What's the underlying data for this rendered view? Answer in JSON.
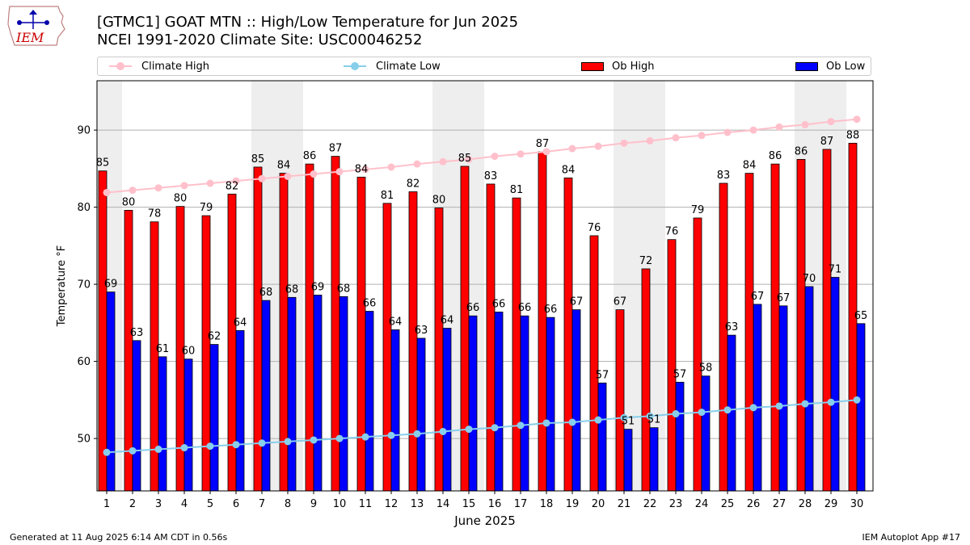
{
  "header": {
    "logo_text": "IEM",
    "title_line1": "[GTMC1] GOAT MTN :: High/Low Temperature for Jun 2025",
    "title_line2": "NCEI 1991-2020 Climate Site: USC00046252"
  },
  "footer": {
    "generated": "Generated at 11 Aug 2025 6:14 AM CDT in 0.56s",
    "app": "IEM Autoplot App #17"
  },
  "legend": {
    "climate_high": "Climate High",
    "climate_low": "Climate Low",
    "ob_high": "Ob High",
    "ob_low": "Ob Low"
  },
  "colors": {
    "climate_high": "#ffc0cb",
    "climate_low": "#87ceeb",
    "ob_high": "#ff0000",
    "ob_low": "#0000ff",
    "weekend_shade": "#eeeeee"
  },
  "chart_data": {
    "type": "bar",
    "xlabel": "June 2025",
    "ylabel": "Temperature °F",
    "ylim": [
      43.2,
      96.4
    ],
    "yticks": [
      50,
      60,
      70,
      80,
      90
    ],
    "grid": true,
    "legend_position": "top",
    "categories": [
      1,
      2,
      3,
      4,
      5,
      6,
      7,
      8,
      9,
      10,
      11,
      12,
      13,
      14,
      15,
      16,
      17,
      18,
      19,
      20,
      21,
      22,
      23,
      24,
      25,
      26,
      27,
      28,
      29,
      30
    ],
    "shaded_days": [
      1,
      7,
      8,
      14,
      15,
      21,
      22,
      28,
      29
    ],
    "series": [
      {
        "name": "Ob High",
        "kind": "bar",
        "values": [
          84.7,
          79.6,
          78.1,
          80.1,
          78.9,
          81.7,
          85.2,
          84.4,
          85.6,
          86.6,
          83.9,
          80.5,
          82.0,
          79.9,
          85.3,
          83.0,
          81.2,
          87.2,
          83.8,
          76.3,
          66.7,
          72.0,
          75.8,
          78.6,
          83.1,
          84.4,
          85.6,
          86.2,
          87.5,
          88.3
        ],
        "labels": [
          "85",
          "80",
          "78",
          "80",
          "79",
          "82",
          "85",
          "84",
          "86",
          "87",
          "84",
          "81",
          "82",
          "80",
          "85",
          "83",
          "81",
          "87",
          "84",
          "76",
          "67",
          "72",
          "76",
          "79",
          "83",
          "84",
          "86",
          "86",
          "87",
          "88"
        ]
      },
      {
        "name": "Ob Low",
        "kind": "bar",
        "values": [
          69.0,
          62.7,
          60.6,
          60.3,
          62.2,
          64.0,
          67.9,
          68.3,
          68.6,
          68.4,
          66.5,
          64.1,
          63.0,
          64.3,
          65.9,
          66.4,
          65.9,
          65.7,
          66.7,
          57.2,
          51.2,
          51.4,
          57.3,
          58.1,
          63.4,
          67.4,
          67.2,
          69.7,
          70.9,
          64.9
        ],
        "labels": [
          "69",
          "63",
          "61",
          "60",
          "62",
          "64",
          "68",
          "68",
          "69",
          "68",
          "66",
          "64",
          "63",
          "64",
          "66",
          "66",
          "66",
          "66",
          "67",
          "57",
          "51",
          "51",
          "57",
          "58",
          "63",
          "67",
          "67",
          "70",
          "71",
          "65"
        ]
      },
      {
        "name": "Climate High",
        "kind": "line",
        "values": [
          81.9,
          82.2,
          82.5,
          82.8,
          83.1,
          83.4,
          83.7,
          84.0,
          84.3,
          84.6,
          84.9,
          85.2,
          85.6,
          85.9,
          86.2,
          86.6,
          86.9,
          87.2,
          87.6,
          87.9,
          88.3,
          88.6,
          89.0,
          89.3,
          89.7,
          90.0,
          90.4,
          90.7,
          91.1,
          91.4
        ]
      },
      {
        "name": "Climate Low",
        "kind": "line",
        "values": [
          48.2,
          48.4,
          48.6,
          48.8,
          49.0,
          49.2,
          49.4,
          49.6,
          49.8,
          50.0,
          50.2,
          50.4,
          50.6,
          50.9,
          51.2,
          51.4,
          51.7,
          52.0,
          52.1,
          52.4,
          52.7,
          52.9,
          53.2,
          53.4,
          53.7,
          54.0,
          54.2,
          54.5,
          54.7,
          55.0
        ]
      }
    ]
  }
}
